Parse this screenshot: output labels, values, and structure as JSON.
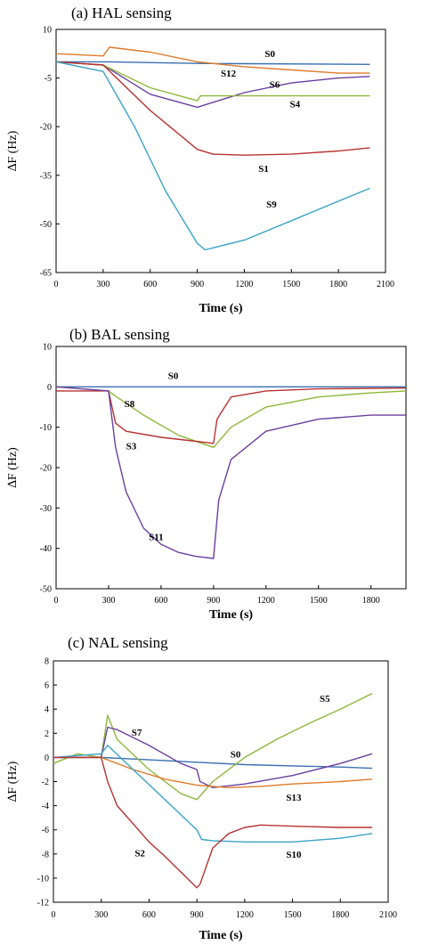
{
  "chart_data": [
    {
      "type": "line",
      "title": "(a) HAL sensing",
      "xlabel": "Time (s)",
      "ylabel": "∆F (Hz)",
      "xlim": [
        0,
        2100
      ],
      "ylim": [
        -65,
        10
      ],
      "xticks": [
        "0",
        "300",
        "600",
        "900",
        "1200",
        "1500",
        "1800",
        "2100"
      ],
      "yticks": [
        "10",
        "-5",
        "-20",
        "-35",
        "-50",
        "-65"
      ],
      "ytick_values": [
        10,
        -5,
        -20,
        -35,
        -50,
        -65
      ],
      "xtick_values": [
        0,
        300,
        600,
        900,
        1200,
        1500,
        1800,
        2100
      ],
      "grid": false,
      "series": [
        {
          "name": "S0",
          "color": "#3a6fb0",
          "x": [
            0,
            300,
            900,
            2000
          ],
          "y": [
            0,
            0,
            -0.5,
            -0.8
          ]
        },
        {
          "name": "S12",
          "color": "#e07b2a",
          "x": [
            0,
            300,
            340,
            600,
            900,
            1200,
            1500,
            1800,
            2000
          ],
          "y": [
            2.5,
            1.8,
            4.5,
            3,
            0,
            -1.5,
            -2.5,
            -3.5,
            -3.5
          ]
        },
        {
          "name": "S6",
          "color": "#6b3fa0",
          "x": [
            0,
            300,
            600,
            900,
            1200,
            1500,
            1800,
            2000
          ],
          "y": [
            0,
            -1,
            -10,
            -14,
            -9.5,
            -6.5,
            -5,
            -4.5
          ]
        },
        {
          "name": "S4",
          "color": "#8db83a",
          "x": [
            0,
            300,
            600,
            900,
            920,
            1200,
            1500,
            1800,
            2000
          ],
          "y": [
            0,
            -1,
            -8,
            -12,
            -10.5,
            -10.5,
            -10.5,
            -10.5,
            -10.5
          ]
        },
        {
          "name": "S1",
          "color": "#b83232",
          "x": [
            0,
            300,
            600,
            900,
            1000,
            1200,
            1500,
            1800,
            2000
          ],
          "y": [
            0,
            -1,
            -15,
            -27,
            -28.5,
            -28.8,
            -28.5,
            -27.5,
            -26.5
          ]
        },
        {
          "name": "S9",
          "color": "#3aa3c8",
          "x": [
            0,
            300,
            500,
            700,
            900,
            950,
            1200,
            1500,
            1800,
            2000
          ],
          "y": [
            0,
            -3,
            -20,
            -40,
            -56,
            -58,
            -55,
            -49,
            -43,
            -39
          ]
        }
      ],
      "labels": [
        {
          "text": "S0",
          "x": 1330,
          "y": 1.5
        },
        {
          "text": "S12",
          "x": 1050,
          "y": -4.5
        },
        {
          "text": "S6",
          "x": 1360,
          "y": -8
        },
        {
          "text": "S4",
          "x": 1490,
          "y": -14
        },
        {
          "text": "S1",
          "x": 1290,
          "y": -34
        },
        {
          "text": "S9",
          "x": 1340,
          "y": -45
        }
      ]
    },
    {
      "type": "line",
      "title": "(b) BAL sensing",
      "xlabel": "Time (s)",
      "ylabel": "∆F (Hz)",
      "xlim": [
        0,
        2000
      ],
      "ylim": [
        -50,
        10
      ],
      "xticks": [
        "0",
        "300",
        "600",
        "900",
        "1200",
        "1500",
        "1800"
      ],
      "yticks": [
        "10",
        "0",
        "-10",
        "-20",
        "-30",
        "-40",
        "-50"
      ],
      "ytick_values": [
        10,
        0,
        -10,
        -20,
        -30,
        -40,
        -50
      ],
      "xtick_values": [
        0,
        300,
        600,
        900,
        1200,
        1500,
        1800
      ],
      "grid": false,
      "series": [
        {
          "name": "S0",
          "color": "#3a6fb0",
          "x": [
            0,
            300,
            900,
            2000
          ],
          "y": [
            0,
            0,
            0,
            0
          ]
        },
        {
          "name": "S8",
          "color": "#8db83a",
          "x": [
            0,
            300,
            330,
            500,
            700,
            900,
            1000,
            1200,
            1500,
            1800,
            2000
          ],
          "y": [
            0,
            -1,
            -2,
            -7,
            -12,
            -15,
            -10,
            -5,
            -2.5,
            -1.5,
            -1
          ]
        },
        {
          "name": "S3",
          "color": "#b83232",
          "x": [
            0,
            300,
            340,
            400,
            600,
            800,
            900,
            920,
            1000,
            1200,
            1500,
            2000
          ],
          "y": [
            -1,
            -1,
            -9,
            -11,
            -12.5,
            -13.5,
            -14,
            -8,
            -2.5,
            -1,
            -0.5,
            -0.3
          ]
        },
        {
          "name": "S11",
          "color": "#6b3fa0",
          "x": [
            0,
            300,
            340,
            400,
            500,
            600,
            700,
            800,
            900,
            930,
            1000,
            1200,
            1500,
            1800,
            2000
          ],
          "y": [
            0,
            -1,
            -15,
            -26,
            -35,
            -39,
            -41,
            -42,
            -42.5,
            -28,
            -18,
            -11,
            -8,
            -7,
            -7
          ]
        }
      ],
      "labels": [
        {
          "text": "S0",
          "x": 640,
          "y": 2
        },
        {
          "text": "S8",
          "x": 390,
          "y": -5
        },
        {
          "text": "S3",
          "x": 400,
          "y": -15.5
        },
        {
          "text": "S11",
          "x": 530,
          "y": -38
        }
      ]
    },
    {
      "type": "line",
      "title": "(c) NAL sensing",
      "xlabel": "Time (s)",
      "ylabel": "∆F (Hz)",
      "xlim": [
        0,
        2100
      ],
      "ylim": [
        -12,
        8
      ],
      "xticks": [
        "0",
        "300",
        "600",
        "900",
        "1200",
        "1500",
        "1800",
        "2100"
      ],
      "yticks": [
        "8",
        "6",
        "4",
        "2",
        "0",
        "-2",
        "-4",
        "-6",
        "-8",
        "-10",
        "-12"
      ],
      "ytick_values": [
        8,
        6,
        4,
        2,
        0,
        -2,
        -4,
        -6,
        -8,
        -10,
        -12
      ],
      "xtick_values": [
        0,
        300,
        600,
        900,
        1200,
        1500,
        1800,
        2100
      ],
      "grid": false,
      "series": [
        {
          "name": "S0",
          "color": "#3a6fb0",
          "x": [
            0,
            300,
            600,
            900,
            1200,
            1500,
            1800,
            2000
          ],
          "y": [
            0,
            0,
            -0.2,
            -0.4,
            -0.6,
            -0.7,
            -0.8,
            -0.9
          ]
        },
        {
          "name": "S5",
          "color": "#8db83a",
          "x": [
            0,
            150,
            300,
            340,
            400,
            600,
            800,
            900,
            1000,
            1200,
            1400,
            1600,
            1800,
            2000
          ],
          "y": [
            -0.5,
            0.3,
            0,
            3.5,
            1.5,
            -1,
            -3,
            -3.5,
            -2,
            0,
            1.5,
            2.8,
            4,
            5.3
          ]
        },
        {
          "name": "S7",
          "color": "#6b3fa0",
          "x": [
            0,
            300,
            340,
            400,
            600,
            800,
            900,
            920,
            1000,
            1200,
            1500,
            1800,
            2000
          ],
          "y": [
            0,
            0,
            2.5,
            2.3,
            1,
            -0.5,
            -1,
            -2,
            -2.5,
            -2.2,
            -1.5,
            -0.5,
            0.3
          ]
        },
        {
          "name": "S13",
          "color": "#e07b2a",
          "x": [
            0,
            300,
            500,
            700,
            900,
            1100,
            1300,
            1500,
            1800,
            2000
          ],
          "y": [
            0,
            0,
            -1,
            -1.8,
            -2.3,
            -2.5,
            -2.4,
            -2.2,
            -2,
            -1.8
          ]
        },
        {
          "name": "S10",
          "color": "#3aa3c8",
          "x": [
            0,
            300,
            340,
            500,
            700,
            900,
            930,
            1000,
            1200,
            1500,
            1800,
            2000
          ],
          "y": [
            0,
            0.3,
            1,
            -1,
            -3.5,
            -6,
            -6.8,
            -6.9,
            -7,
            -7,
            -6.7,
            -6.3
          ]
        },
        {
          "name": "S2",
          "color": "#b83232",
          "x": [
            0,
            300,
            340,
            400,
            500,
            600,
            700,
            800,
            900,
            920,
            1000,
            1100,
            1200,
            1300,
            1500,
            1800,
            2000
          ],
          "y": [
            0,
            0,
            -2,
            -4,
            -5.5,
            -7,
            -8.2,
            -9.5,
            -10.8,
            -10.5,
            -7.5,
            -6.3,
            -5.8,
            -5.6,
            -5.7,
            -5.8,
            -5.8
          ]
        }
      ],
      "labels": [
        {
          "text": "S5",
          "x": 1670,
          "y": 4.6
        },
        {
          "text": "S7",
          "x": 490,
          "y": 1.8
        },
        {
          "text": "S0",
          "x": 1110,
          "y": 0
        },
        {
          "text": "S13",
          "x": 1460,
          "y": -3.6
        },
        {
          "text": "S2",
          "x": 510,
          "y": -8.2
        },
        {
          "text": "S10",
          "x": 1460,
          "y": -8.3
        }
      ]
    }
  ]
}
